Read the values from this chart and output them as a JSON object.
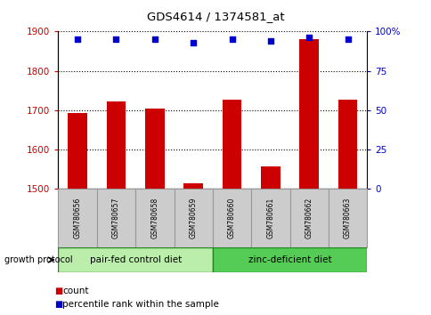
{
  "title": "GDS4614 / 1374581_at",
  "samples": [
    "GSM780656",
    "GSM780657",
    "GSM780658",
    "GSM780659",
    "GSM780660",
    "GSM780661",
    "GSM780662",
    "GSM780663"
  ],
  "counts": [
    1693,
    1723,
    1705,
    1515,
    1728,
    1558,
    1880,
    1728
  ],
  "percentiles": [
    95,
    95,
    95,
    93,
    95,
    94,
    96,
    95
  ],
  "ylim_left": [
    1500,
    1900
  ],
  "ylim_right": [
    0,
    100
  ],
  "yticks_left": [
    1500,
    1600,
    1700,
    1800,
    1900
  ],
  "yticks_right": [
    0,
    25,
    50,
    75,
    100
  ],
  "ytick_labels_right": [
    "0",
    "25",
    "50",
    "75",
    "100%"
  ],
  "bar_color": "#cc0000",
  "scatter_color": "#0000cc",
  "bar_bottom": 1500,
  "group1_label": "pair-fed control diet",
  "group2_label": "zinc-deficient diet",
  "group1_indices": [
    0,
    1,
    2,
    3
  ],
  "group2_indices": [
    4,
    5,
    6,
    7
  ],
  "group1_color": "#bbeeaa",
  "group2_color": "#55cc55",
  "group_border_color": "#228822",
  "protocol_label": "growth protocol",
  "legend_count_label": "count",
  "legend_pct_label": "percentile rank within the sample",
  "label_color_left": "#cc0000",
  "label_color_right": "#0000cc",
  "sample_box_color": "#cccccc",
  "sample_box_border": "#999999"
}
